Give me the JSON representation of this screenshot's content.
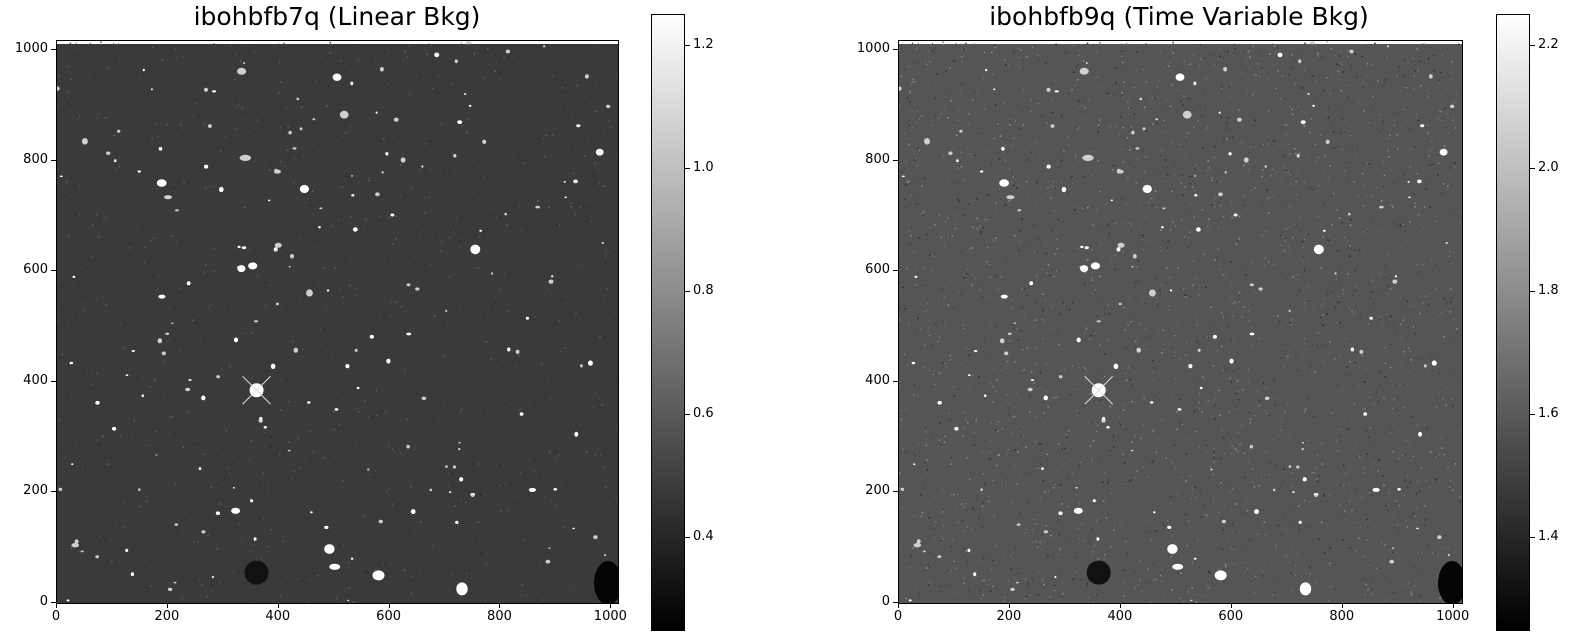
{
  "panels": [
    {
      "title": "ibohbfb7q (Linear Bkg)",
      "x_ticks": [
        "0",
        "200",
        "400",
        "600",
        "800",
        "1000"
      ],
      "y_ticks": [
        "0",
        "200",
        "400",
        "600",
        "800",
        "1000"
      ],
      "colorbar_ticks": [
        "0.4",
        "0.6",
        "0.8",
        "1.0",
        "1.2"
      ],
      "colormap": "gray",
      "background_gray": "#3a3a3a"
    },
    {
      "title": "ibohbfb9q (Time Variable Bkg)",
      "x_ticks": [
        "0",
        "200",
        "400",
        "600",
        "800",
        "1000"
      ],
      "y_ticks": [
        "0",
        "200",
        "400",
        "600",
        "800",
        "1000"
      ],
      "colorbar_ticks": [
        "1.4",
        "1.6",
        "1.8",
        "2.0",
        "2.2"
      ],
      "colormap": "gray",
      "background_gray": "#555555"
    }
  ]
}
